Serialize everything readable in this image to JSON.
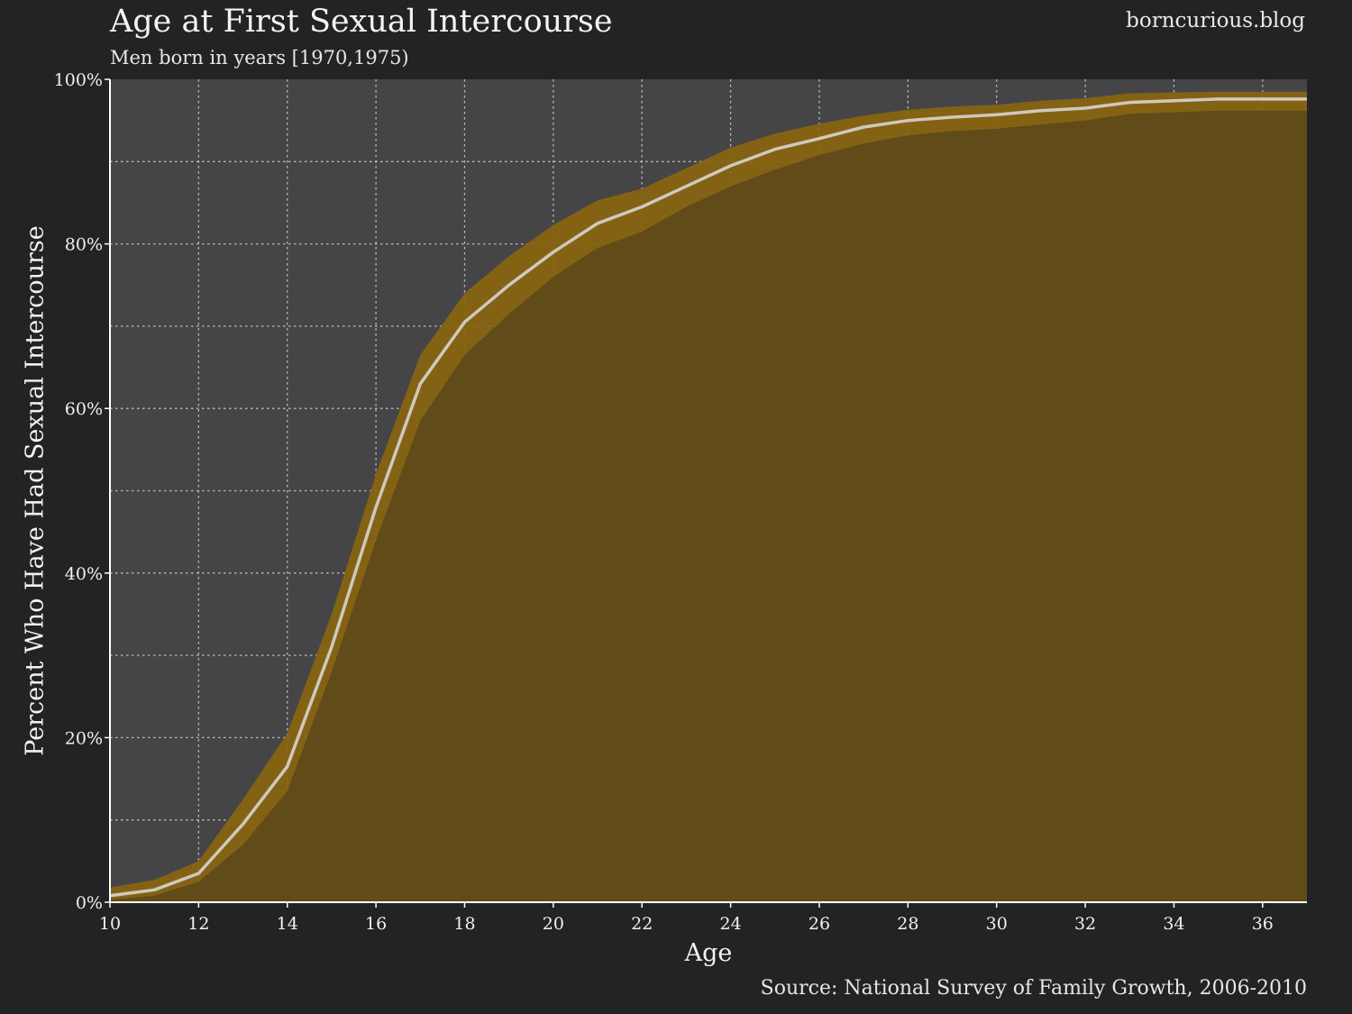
{
  "header": {
    "brand": "borncurious.blog"
  },
  "footer": {
    "source": "Source: National Survey of Family Growth, 2006-2010"
  },
  "chart_data": {
    "type": "line",
    "title": "Age at First Sexual Intercourse",
    "subtitle": "Men born in years [1970,1975)",
    "xlabel": "Age",
    "ylabel": "Percent Who Have Had Sexual Intercourse",
    "xlim": [
      10,
      37
    ],
    "ylim": [
      0,
      100
    ],
    "x_ticks": [
      10,
      12,
      14,
      16,
      18,
      20,
      22,
      24,
      26,
      28,
      30,
      32,
      34,
      36
    ],
    "y_ticks": [
      0,
      20,
      40,
      60,
      80,
      100
    ],
    "y_tick_labels": [
      "0%",
      "20%",
      "40%",
      "60%",
      "80%",
      "100%"
    ],
    "grid": true,
    "series": [
      {
        "x": [
          10,
          11,
          12,
          13,
          14,
          15,
          16,
          17,
          18,
          19,
          20,
          21,
          22,
          23,
          24,
          25,
          26,
          27,
          28,
          29,
          30,
          31,
          32,
          33,
          34,
          35,
          36,
          37
        ],
        "y": [
          0.8,
          1.5,
          3.5,
          9.5,
          16.5,
          31,
          48,
          63,
          70.5,
          75,
          79,
          82.5,
          84.5,
          87,
          89.5,
          91.5,
          92.8,
          94.2,
          95,
          95.4,
          95.7,
          96.2,
          96.5,
          97.2,
          97.4,
          97.6,
          97.6,
          97.6
        ],
        "lower": [
          0.3,
          0.8,
          2.5,
          7,
          13.5,
          28,
          44,
          58.5,
          66.5,
          71.5,
          76,
          79.5,
          81.5,
          84.5,
          87,
          89,
          90.8,
          92.2,
          93.2,
          93.7,
          94,
          94.5,
          95,
          95.8,
          96,
          96.2,
          96.2,
          96.2
        ],
        "upper": [
          1.8,
          2.7,
          5,
          12.5,
          20.5,
          35,
          52,
          66.5,
          74,
          78.5,
          82.3,
          85.3,
          86.7,
          89.2,
          91.7,
          93.4,
          94.6,
          95.6,
          96.3,
          96.7,
          96.9,
          97.4,
          97.7,
          98.3,
          98.4,
          98.5,
          98.5,
          98.5
        ]
      }
    ],
    "colors": {
      "background": "#222325",
      "plot_background": "#454548",
      "area_fill": "#614b18",
      "confidence_band": "#8a6510",
      "line": "#cfc9be",
      "grid": "#cfcfcf"
    }
  }
}
